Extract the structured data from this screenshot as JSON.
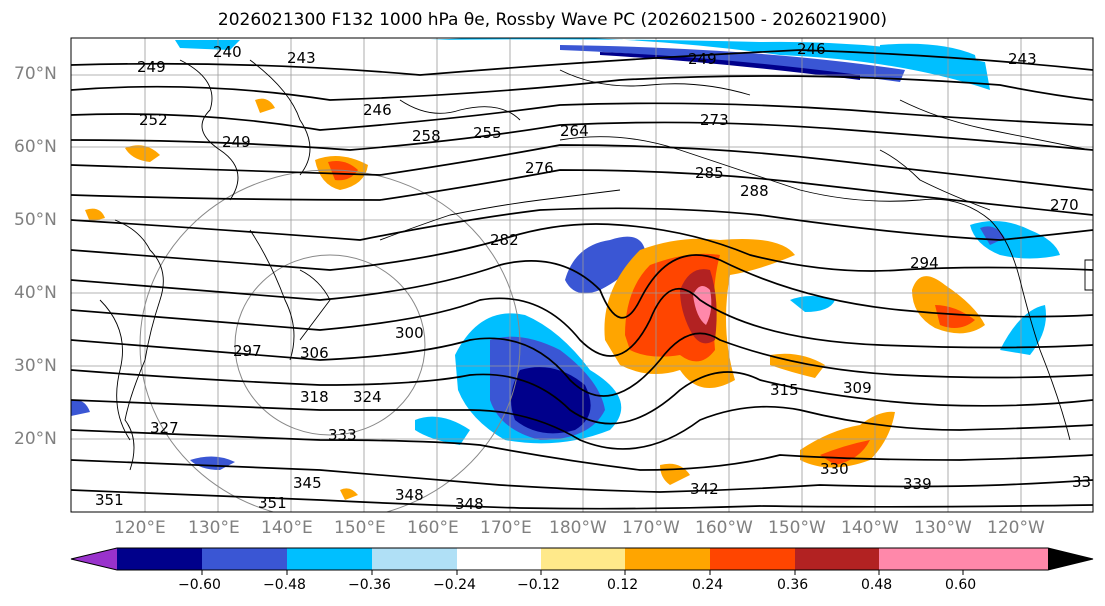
{
  "title": "2026021300 F132 1000 hPa θe, Rossby Wave PC (2026021500 - 2026021900)",
  "map": {
    "lat_labels": [
      "70°N",
      "60°N",
      "50°N",
      "40°N",
      "30°N",
      "20°N"
    ],
    "lon_labels": [
      "120°E",
      "130°E",
      "140°E",
      "150°E",
      "160°E",
      "170°E",
      "180°W",
      "170°W",
      "160°W",
      "150°W",
      "140°W",
      "130°W",
      "120°W"
    ],
    "contour_labels": [
      {
        "text": "249"
      },
      {
        "text": "240"
      },
      {
        "text": "243"
      },
      {
        "text": "246"
      },
      {
        "text": "246"
      },
      {
        "text": "249"
      },
      {
        "text": "243"
      },
      {
        "text": "252"
      },
      {
        "text": "249"
      },
      {
        "text": "258"
      },
      {
        "text": "255"
      },
      {
        "text": "264"
      },
      {
        "text": "273"
      },
      {
        "text": "276"
      },
      {
        "text": "285"
      },
      {
        "text": "288"
      },
      {
        "text": "270"
      },
      {
        "text": "282"
      },
      {
        "text": "294"
      },
      {
        "text": "300"
      },
      {
        "text": "297"
      },
      {
        "text": "306"
      },
      {
        "text": "318"
      },
      {
        "text": "324"
      },
      {
        "text": "315"
      },
      {
        "text": "309"
      },
      {
        "text": "327"
      },
      {
        "text": "333"
      },
      {
        "text": "330"
      },
      {
        "text": "345"
      },
      {
        "text": "351"
      },
      {
        "text": "351"
      },
      {
        "text": "348"
      },
      {
        "text": "348"
      },
      {
        "text": "342"
      },
      {
        "text": "339"
      },
      {
        "text": "33"
      }
    ]
  },
  "colorbar": {
    "ticks": [
      "−0.60",
      "−0.48",
      "−0.36",
      "−0.24",
      "−0.12",
      "0.12",
      "0.24",
      "0.36",
      "0.48",
      "0.60"
    ],
    "colors": [
      "#9932cc",
      "#00008b",
      "#3a56d4",
      "#00bfff",
      "#b0e0f6",
      "#ffffff",
      "#ffe98a",
      "#ffa500",
      "#ff4500",
      "#b22222",
      "#ff88aa",
      "#ff88aa"
    ]
  }
}
